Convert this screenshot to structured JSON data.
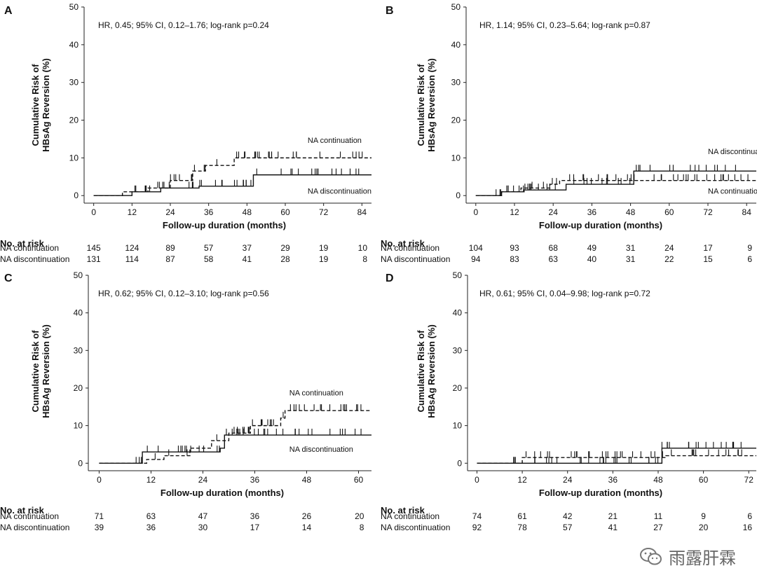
{
  "figure": {
    "y_axis_label_line1": "Cumulative Risk of",
    "y_axis_label_line2": "HBsAg Reversion (%)",
    "x_axis_label": "Follow-up duration (months)",
    "risk_table_title": "No. at risk",
    "watermark": "雨露肝霖"
  },
  "chart_data": [
    {
      "type": "line",
      "panel": "A",
      "annotation": "HR, 0.45; 95% CI, 0.12–1.76; log-rank p=0.24",
      "xlabel": "Follow-up duration (months)",
      "ylabel": "Cumulative Risk of HBsAg Reversion (%)",
      "xlim": [
        -3,
        87
      ],
      "ylim": [
        -2,
        50
      ],
      "xticks": [
        0,
        12,
        24,
        36,
        48,
        60,
        72,
        84
      ],
      "yticks": [
        0,
        10,
        20,
        30,
        40,
        50
      ],
      "series": [
        {
          "name": "NA continuation",
          "style": "dashed",
          "steps": [
            [
              0,
              0
            ],
            [
              9,
              1
            ],
            [
              17,
              2
            ],
            [
              24,
              4
            ],
            [
              31,
              6.5
            ],
            [
              35,
              8
            ],
            [
              44,
              10
            ],
            [
              88,
              10
            ]
          ]
        },
        {
          "name": "NA discontinuation",
          "style": "solid",
          "steps": [
            [
              0,
              0
            ],
            [
              12,
              1
            ],
            [
              21,
              2
            ],
            [
              31,
              2
            ],
            [
              33,
              2.5
            ],
            [
              50,
              5.5
            ],
            [
              88,
              5.5
            ]
          ]
        }
      ],
      "series_labels": [
        {
          "name": "NA continuation",
          "x": 67,
          "y": 14
        },
        {
          "name": "NA discontinuation",
          "x": 67,
          "y": 0.5
        }
      ],
      "risk_x": [
        0,
        12,
        24,
        36,
        48,
        60,
        72,
        84
      ],
      "risk_table": [
        {
          "label": "NA continuation",
          "counts": [
            "145",
            "124",
            "89",
            "57",
            "37",
            "29",
            "19",
            "10"
          ]
        },
        {
          "label": "NA discontinuation",
          "counts": [
            "131",
            "114",
            "87",
            "58",
            "41",
            "28",
            "19",
            "8"
          ]
        }
      ]
    },
    {
      "type": "line",
      "panel": "B",
      "annotation": "HR, 1.14; 95% CI, 0.23–5.64; log-rank p=0.87",
      "xlabel": "Follow-up duration (months)",
      "ylabel": "Cumulative Risk of HBsAg Reversion (%)",
      "xlim": [
        -3,
        87
      ],
      "ylim": [
        -2,
        50
      ],
      "xticks": [
        0,
        12,
        24,
        36,
        48,
        60,
        72,
        84
      ],
      "yticks": [
        0,
        10,
        20,
        30,
        40,
        50
      ],
      "series": [
        {
          "name": "NA continuation",
          "style": "dashed",
          "steps": [
            [
              0,
              0
            ],
            [
              8,
              1
            ],
            [
              14,
              2
            ],
            [
              23,
              3
            ],
            [
              26,
              4
            ],
            [
              50,
              4
            ],
            [
              88,
              4
            ]
          ]
        },
        {
          "name": "NA discontinuation",
          "style": "solid",
          "steps": [
            [
              0,
              0
            ],
            [
              8,
              1
            ],
            [
              15,
              1.5
            ],
            [
              28,
              3
            ],
            [
              49,
              6.5
            ],
            [
              88,
              6.5
            ]
          ]
        }
      ],
      "series_labels": [
        {
          "name": "NA discontinuation",
          "x": 72,
          "y": 11
        },
        {
          "name": "NA continuation",
          "x": 72,
          "y": 0.5
        }
      ],
      "risk_x": [
        0,
        12,
        24,
        36,
        48,
        60,
        72,
        84
      ],
      "risk_table": [
        {
          "label": "NA continuation",
          "counts": [
            "104",
            "93",
            "68",
            "49",
            "31",
            "24",
            "17",
            "9"
          ]
        },
        {
          "label": "NA discontinuation",
          "counts": [
            "94",
            "83",
            "63",
            "40",
            "31",
            "22",
            "15",
            "6"
          ]
        }
      ]
    },
    {
      "type": "line",
      "panel": "C",
      "annotation": "HR, 0.62; 95% CI, 0.12–3.10; log-rank p=0.56",
      "xlabel": "Follow-up duration (months)",
      "ylabel": "Cumulative Risk of HBsAg Reversion (%)",
      "xlim": [
        -2.5,
        63
      ],
      "ylim": [
        -2,
        50
      ],
      "xticks": [
        0,
        12,
        24,
        36,
        48,
        60
      ],
      "yticks": [
        0,
        10,
        20,
        30,
        40,
        50
      ],
      "series": [
        {
          "name": "NA continuation",
          "style": "dashed",
          "steps": [
            [
              0,
              0
            ],
            [
              11,
              1
            ],
            [
              15,
              2
            ],
            [
              21,
              4
            ],
            [
              26,
              6
            ],
            [
              30,
              8
            ],
            [
              35,
              10
            ],
            [
              42,
              12
            ],
            [
              43,
              14
            ],
            [
              63,
              14
            ]
          ]
        },
        {
          "name": "NA discontinuation",
          "style": "solid",
          "steps": [
            [
              0,
              0
            ],
            [
              10,
              1
            ],
            [
              10,
              3
            ],
            [
              22,
              3
            ],
            [
              28,
              4
            ],
            [
              29,
              7.5
            ],
            [
              63,
              7.5
            ]
          ]
        }
      ],
      "series_labels": [
        {
          "name": "NA continuation",
          "x": 44,
          "y": 18
        },
        {
          "name": "NA discontinuation",
          "x": 44,
          "y": 3
        }
      ],
      "risk_x": [
        0,
        12,
        24,
        36,
        48,
        60
      ],
      "risk_table": [
        {
          "label": "NA continuation",
          "counts": [
            "71",
            "63",
            "47",
            "36",
            "26",
            "20"
          ]
        },
        {
          "label": "NA discontinuation",
          "counts": [
            "39",
            "36",
            "30",
            "17",
            "14",
            "8"
          ]
        }
      ]
    },
    {
      "type": "line",
      "panel": "D",
      "annotation": "HR, 0.61; 95% CI, 0.04–9.98; log-rank p=0.72",
      "xlabel": "Follow-up duration (months)",
      "ylabel": "Cumulative Risk of HBsAg Reversion (%)",
      "xlim": [
        -2.5,
        74
      ],
      "ylim": [
        -2,
        50
      ],
      "xticks": [
        0,
        12,
        24,
        36,
        48,
        60,
        72
      ],
      "yticks": [
        0,
        10,
        20,
        30,
        40,
        50
      ],
      "series": [
        {
          "name": "NA continuation",
          "style": "dashed",
          "steps": [
            [
              0,
              0
            ],
            [
              12,
              1.5
            ],
            [
              49,
              1.5
            ],
            [
              50,
              2
            ],
            [
              74,
              2
            ]
          ]
        },
        {
          "name": "NA discontinuation",
          "style": "solid",
          "steps": [
            [
              0,
              0
            ],
            [
              49,
              0
            ],
            [
              49,
              4
            ],
            [
              74,
              4
            ]
          ]
        }
      ],
      "series_labels": [],
      "risk_x": [
        0,
        12,
        24,
        36,
        48,
        60,
        72
      ],
      "risk_table": [
        {
          "label": "NA continuation",
          "counts": [
            "74",
            "61",
            "42",
            "21",
            "11",
            "9",
            "6"
          ]
        },
        {
          "label": "NA discontinuation",
          "counts": [
            "92",
            "78",
            "57",
            "41",
            "27",
            "20",
            "16"
          ]
        }
      ]
    }
  ]
}
